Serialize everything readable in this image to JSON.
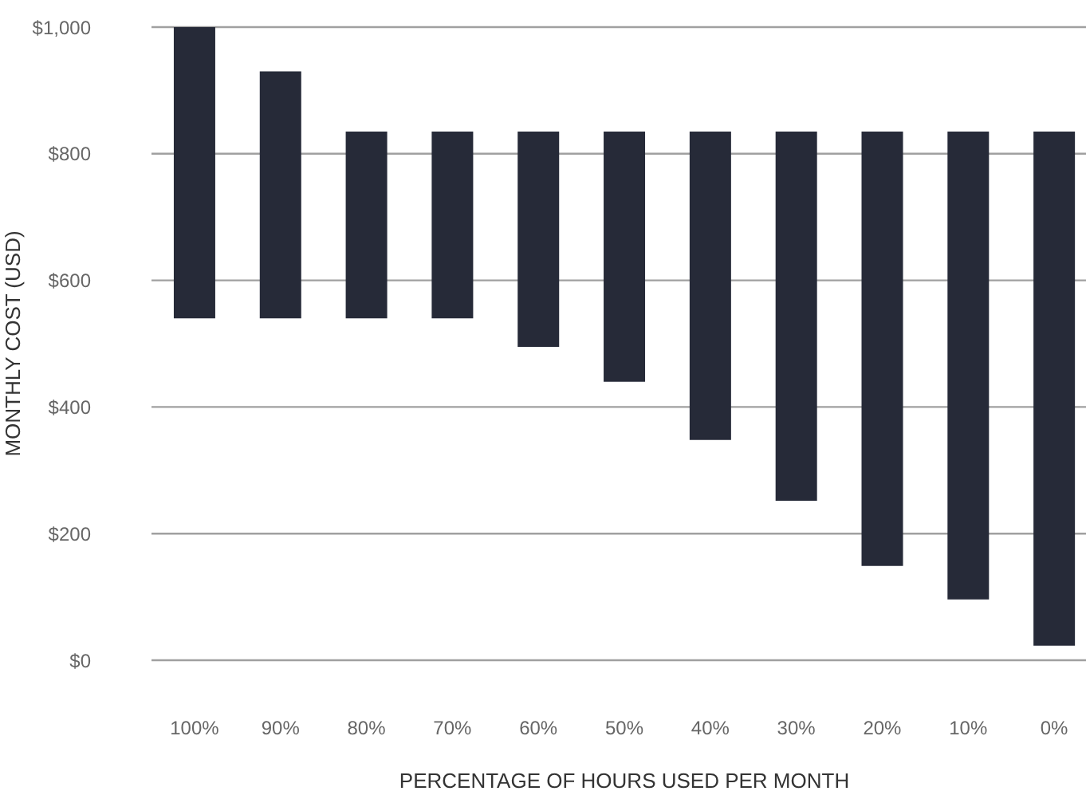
{
  "chart_data": {
    "type": "bar",
    "xlabel": "PERCENTAGE OF HOURS USED PER MONTH",
    "ylabel": "MONTHLY COST (USD)",
    "categories": [
      "100%",
      "90%",
      "80%",
      "70%",
      "60%",
      "50%",
      "40%",
      "30%",
      "20%",
      "10%",
      "0%"
    ],
    "base": [
      540,
      540,
      540,
      540,
      495,
      440,
      348,
      252,
      149,
      96,
      23
    ],
    "values": [
      460,
      390,
      295,
      295,
      340,
      395,
      487,
      583,
      686,
      739,
      812
    ],
    "color": "#262a38",
    "ylim": [
      0,
      1000
    ],
    "yticks": [
      {
        "value": 0,
        "label": "$0"
      },
      {
        "value": 200,
        "label": "$200"
      },
      {
        "value": 400,
        "label": "$400"
      },
      {
        "value": 600,
        "label": "$600"
      },
      {
        "value": 800,
        "label": "$800"
      },
      {
        "value": 1000,
        "label": "$1,000"
      }
    ],
    "grid": "y",
    "legend": false
  }
}
